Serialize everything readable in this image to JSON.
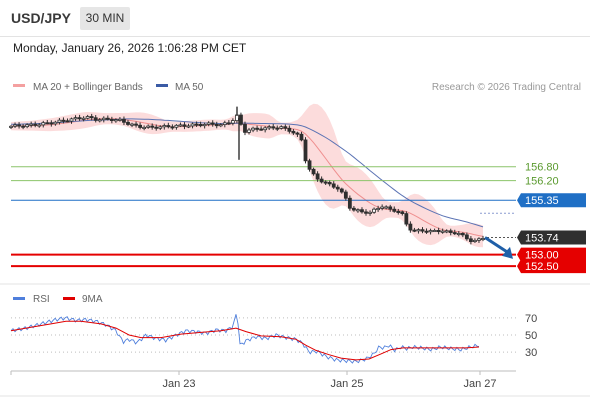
{
  "header": {
    "symbol": "USD/JPY",
    "timeframe": "30 MIN",
    "datetime": "Monday, January 26, 2026 1:06:28 PM CET",
    "copyright": "Research © 2026 Trading Central"
  },
  "colors": {
    "candle": "#2e2e2e",
    "bands": "#f9c0c0",
    "ma20": "#ef8f8f",
    "ma50": "#5b73b4",
    "resistance_green": "#8cc46a",
    "pivot_blue": "#1f6fc5",
    "support_red": "#e50000",
    "rsi": "#4f7fdc",
    "rsi_ma": "#e00000",
    "arrow": "#1f5fa8",
    "last_price_bg": "#2f2f2f"
  },
  "chart_data": {
    "type": "candlestick",
    "legend": [
      {
        "name": "MA 20 + Bollinger Bands",
        "color": "#f4a0a0"
      },
      {
        "name": "MA 50",
        "color": "#3b5ba5"
      }
    ],
    "x_ticks": [
      "Jan 23",
      "Jan 25",
      "Jan 27"
    ],
    "y_range": [
      151.9,
      159.6
    ],
    "levels": [
      {
        "value": 156.8,
        "label": "156.80",
        "kind": "resistance"
      },
      {
        "value": 156.2,
        "label": "156.20",
        "kind": "resistance"
      },
      {
        "value": 155.35,
        "label": "155.35",
        "kind": "pivot"
      },
      {
        "value": 153.74,
        "label": "153.74",
        "kind": "last"
      },
      {
        "value": 153.0,
        "label": "153.00",
        "kind": "support"
      },
      {
        "value": 152.5,
        "label": "152.50",
        "kind": "support"
      }
    ],
    "price_path": [
      [
        0,
        158.55
      ],
      [
        20,
        158.6
      ],
      [
        40,
        158.7
      ],
      [
        60,
        158.85
      ],
      [
        75,
        158.95
      ],
      [
        85,
        158.85
      ],
      [
        100,
        158.85
      ],
      [
        110,
        158.8
      ],
      [
        118,
        158.65
      ],
      [
        126,
        158.55
      ],
      [
        140,
        158.5
      ],
      [
        160,
        158.55
      ],
      [
        180,
        158.6
      ],
      [
        200,
        158.65
      ],
      [
        210,
        158.6
      ],
      [
        220,
        158.75
      ],
      [
        226,
        159.0
      ],
      [
        228,
        158.9
      ],
      [
        232,
        158.3
      ],
      [
        238,
        158.4
      ],
      [
        250,
        158.45
      ],
      [
        262,
        158.5
      ],
      [
        270,
        158.5
      ],
      [
        280,
        158.35
      ],
      [
        290,
        158.05
      ],
      [
        295,
        157.0
      ],
      [
        300,
        156.55
      ],
      [
        306,
        156.3
      ],
      [
        314,
        156.1
      ],
      [
        320,
        156.0
      ],
      [
        326,
        155.9
      ],
      [
        334,
        155.5
      ],
      [
        340,
        154.95
      ],
      [
        352,
        154.85
      ],
      [
        360,
        154.8
      ],
      [
        365,
        155.0
      ],
      [
        372,
        155.1
      ],
      [
        378,
        154.95
      ],
      [
        386,
        154.9
      ],
      [
        392,
        154.7
      ],
      [
        396,
        154.25
      ],
      [
        402,
        154.0
      ],
      [
        410,
        154.05
      ],
      [
        420,
        154.0
      ],
      [
        430,
        154.05
      ],
      [
        438,
        153.95
      ],
      [
        446,
        153.95
      ],
      [
        454,
        153.75
      ],
      [
        462,
        153.55
      ],
      [
        468,
        153.65
      ],
      [
        472,
        153.74
      ]
    ],
    "spikes": [
      {
        "x": 226,
        "high": 159.4
      },
      {
        "x": 228,
        "low": 157.1
      }
    ],
    "forecast_arrow": {
      "from": 153.74,
      "to": 152.9
    },
    "indicator": {
      "name": "RSI",
      "ma_name": "9MA",
      "levels": [
        70,
        50,
        30
      ],
      "ylim": [
        15,
        85
      ],
      "rsi": [
        [
          0,
          55
        ],
        [
          15,
          58
        ],
        [
          30,
          63
        ],
        [
          45,
          68
        ],
        [
          55,
          70
        ],
        [
          65,
          67
        ],
        [
          75,
          68
        ],
        [
          85,
          66
        ],
        [
          95,
          62
        ],
        [
          105,
          55
        ],
        [
          112,
          42
        ],
        [
          118,
          45
        ],
        [
          126,
          41
        ],
        [
          135,
          50
        ],
        [
          145,
          46
        ],
        [
          155,
          44
        ],
        [
          165,
          50
        ],
        [
          175,
          55
        ],
        [
          185,
          54
        ],
        [
          195,
          52
        ],
        [
          205,
          56
        ],
        [
          215,
          55
        ],
        [
          222,
          60
        ],
        [
          226,
          78
        ],
        [
          229,
          38
        ],
        [
          236,
          44
        ],
        [
          245,
          48
        ],
        [
          255,
          46
        ],
        [
          265,
          50
        ],
        [
          275,
          47
        ],
        [
          285,
          45
        ],
        [
          292,
          40
        ],
        [
          298,
          30
        ],
        [
          306,
          31
        ],
        [
          315,
          25
        ],
        [
          325,
          21
        ],
        [
          335,
          20
        ],
        [
          345,
          19
        ],
        [
          355,
          22
        ],
        [
          363,
          28
        ],
        [
          368,
          36
        ],
        [
          373,
          35
        ],
        [
          378,
          38
        ],
        [
          384,
          32
        ],
        [
          390,
          36
        ],
        [
          396,
          34
        ],
        [
          402,
          36
        ],
        [
          410,
          35
        ],
        [
          420,
          33
        ],
        [
          430,
          36
        ],
        [
          440,
          34
        ],
        [
          450,
          33
        ],
        [
          460,
          36
        ],
        [
          468,
          38
        ]
      ],
      "rsi_ma": [
        [
          0,
          55
        ],
        [
          20,
          59
        ],
        [
          40,
          63
        ],
        [
          55,
          66
        ],
        [
          70,
          66
        ],
        [
          90,
          63
        ],
        [
          105,
          58
        ],
        [
          118,
          50
        ],
        [
          130,
          47
        ],
        [
          150,
          47
        ],
        [
          170,
          51
        ],
        [
          190,
          53
        ],
        [
          210,
          55
        ],
        [
          225,
          58
        ],
        [
          235,
          54
        ],
        [
          250,
          49
        ],
        [
          270,
          48
        ],
        [
          285,
          45
        ],
        [
          295,
          38
        ],
        [
          305,
          32
        ],
        [
          318,
          27
        ],
        [
          330,
          23
        ],
        [
          345,
          21
        ],
        [
          358,
          22
        ],
        [
          370,
          28
        ],
        [
          380,
          33
        ],
        [
          392,
          35
        ],
        [
          405,
          35
        ],
        [
          420,
          35
        ],
        [
          440,
          35
        ],
        [
          455,
          35
        ],
        [
          468,
          36
        ]
      ]
    }
  }
}
